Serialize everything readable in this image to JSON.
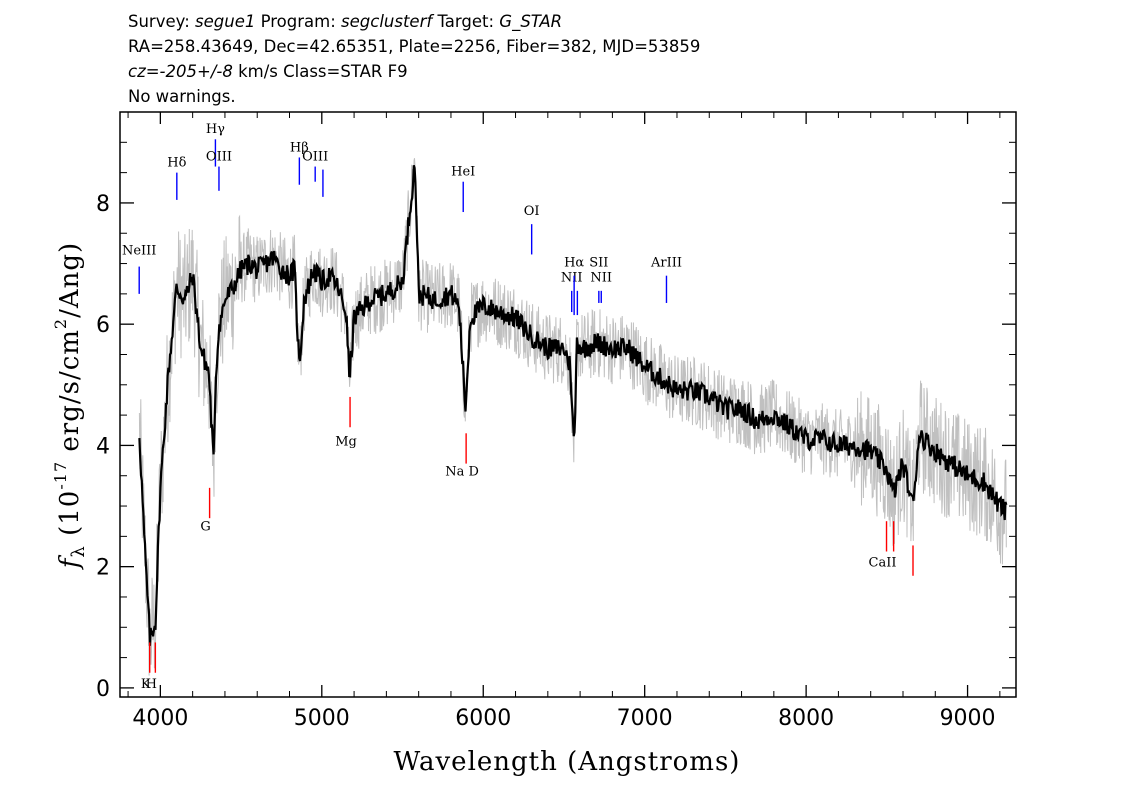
{
  "header": {
    "survey_key": "Survey:",
    "survey": "segue1",
    "program_key": "Program:",
    "program": "segclusterf",
    "target_key": "Target:",
    "target": "G_STAR",
    "line2": "RA=258.43649, Dec=42.65351, Plate=2256, Fiber=382, MJD=53859",
    "cz": "cz=-205+/-8",
    "cz_units": "km/s Class=STAR F9",
    "warnings": "No warnings."
  },
  "chart_data": {
    "type": "line",
    "xlabel": "Wavelength (Angstroms)",
    "ylabel": "f_λ (10^-17 erg/s/cm^2/Ang)",
    "xlim": [
      3750,
      9300
    ],
    "ylim": [
      -0.15,
      9.5
    ],
    "xticks": [
      4000,
      5000,
      6000,
      7000,
      8000,
      9000
    ],
    "xtick_labels": [
      "4000",
      "5000",
      "6000",
      "7000",
      "8000",
      "9000"
    ],
    "yticks": [
      0,
      2,
      4,
      6,
      8
    ],
    "ytick_labels": [
      "0",
      "2",
      "4",
      "6",
      "8"
    ],
    "grid": false,
    "series": [
      {
        "role": "smoothed-spectrum",
        "color": "#000000",
        "x": [
          3870,
          3900,
          3935,
          3970,
          4000,
          4050,
          4100,
          4150,
          4200,
          4250,
          4300,
          4330,
          4340,
          4360,
          4400,
          4450,
          4500,
          4550,
          4600,
          4650,
          4700,
          4750,
          4800,
          4830,
          4861,
          4890,
          4950,
          5000,
          5050,
          5100,
          5150,
          5172,
          5200,
          5300,
          5400,
          5500,
          5577,
          5600,
          5700,
          5800,
          5850,
          5890,
          5920,
          6000,
          6100,
          6200,
          6300,
          6400,
          6500,
          6540,
          6563,
          6580,
          6620,
          6700,
          6800,
          6900,
          7000,
          7100,
          7200,
          7300,
          7400,
          7500,
          7600,
          7700,
          7800,
          7900,
          8000,
          8100,
          8200,
          8300,
          8400,
          8500,
          8540,
          8600,
          8662,
          8700,
          8800,
          8900,
          9000,
          9100,
          9200,
          9240
        ],
        "y": [
          4.2,
          2.5,
          0.8,
          1.1,
          3.3,
          5.2,
          6.6,
          6.4,
          6.8,
          5.6,
          5.2,
          3.7,
          4.9,
          5.9,
          6.4,
          6.6,
          6.9,
          7.0,
          6.9,
          7.0,
          7.1,
          6.9,
          6.8,
          6.9,
          5.3,
          6.4,
          6.9,
          6.7,
          6.8,
          6.6,
          6.2,
          5.1,
          6.1,
          6.4,
          6.5,
          6.7,
          8.7,
          6.5,
          6.4,
          6.5,
          6.3,
          4.6,
          6.1,
          6.3,
          6.2,
          6.1,
          5.8,
          5.6,
          5.6,
          5.3,
          3.9,
          5.7,
          5.6,
          5.7,
          5.6,
          5.6,
          5.3,
          5.1,
          4.9,
          4.9,
          4.8,
          4.6,
          4.6,
          4.4,
          4.5,
          4.3,
          4.1,
          4.1,
          4.0,
          4.0,
          3.9,
          3.6,
          3.2,
          3.7,
          3.0,
          4.2,
          3.9,
          3.7,
          3.5,
          3.4,
          3.0,
          2.9
        ]
      },
      {
        "role": "raw-flux",
        "color": "#c0c0c0",
        "spread": 0.6,
        "x_range": [
          3870,
          9240
        ]
      }
    ],
    "emission_lines": [
      {
        "label": "NeIII",
        "wavelength": 3869,
        "label_y": 7.15,
        "y_top": 6.95,
        "y_bottom": 6.5
      },
      {
        "label": "Hδ",
        "wavelength": 4102,
        "label_y": 8.6,
        "y_top": 8.5,
        "y_bottom": 8.05
      },
      {
        "label": "Hγ",
        "wavelength": 4341,
        "label_y": 9.15,
        "y_top": 9.05,
        "y_bottom": 8.6
      },
      {
        "label": "OIII",
        "wavelength": 4363,
        "label_y": 8.7,
        "y_top": 8.6,
        "y_bottom": 8.2
      },
      {
        "label": "Hβ",
        "wavelength": 4861,
        "label_y": 8.85,
        "y_top": 8.75,
        "y_bottom": 8.3
      },
      {
        "label": "OIII",
        "wavelength": 4959,
        "label_y": 8.7,
        "y_top": 8.6,
        "y_bottom": 8.35
      },
      {
        "label": "",
        "wavelength": 5007,
        "label_y": 0,
        "y_top": 8.55,
        "y_bottom": 8.1
      },
      {
        "label": "HeI",
        "wavelength": 5876,
        "label_y": 8.45,
        "y_top": 8.35,
        "y_bottom": 7.85
      },
      {
        "label": "OI",
        "wavelength": 6300,
        "label_y": 7.8,
        "y_top": 7.65,
        "y_bottom": 7.15
      },
      {
        "label": "NII",
        "wavelength": 6548,
        "label_y": 6.7,
        "y_top": 6.55,
        "y_bottom": 6.2
      },
      {
        "label": "Hα",
        "wavelength": 6563,
        "label_y": 6.95,
        "y_top": 6.8,
        "y_bottom": 6.15
      },
      {
        "label": "",
        "wavelength": 6583,
        "label_y": 0,
        "y_top": 6.55,
        "y_bottom": 6.15
      },
      {
        "label": "SII",
        "wavelength": 6716,
        "label_y": 6.95,
        "y_top": 6.55,
        "y_bottom": 6.35
      },
      {
        "label": "NII",
        "wavelength": 6731,
        "label_y": 6.7,
        "y_top": 6.55,
        "y_bottom": 6.35
      },
      {
        "label": "ArIII",
        "wavelength": 7135,
        "label_y": 6.95,
        "y_top": 6.8,
        "y_bottom": 6.35
      }
    ],
    "absorption_lines": [
      {
        "label": "K",
        "wavelength": 3934,
        "label_y": 0.0,
        "y_top": 0.75,
        "y_bottom": 0.25
      },
      {
        "label": "H",
        "wavelength": 3969,
        "label_y": 0.0,
        "y_top": 0.75,
        "y_bottom": 0.25
      },
      {
        "label": "G",
        "wavelength": 4305,
        "label_y": 2.6,
        "y_top": 3.3,
        "y_bottom": 2.8
      },
      {
        "label": "Mg",
        "wavelength": 5175,
        "label_y": 4.0,
        "y_top": 4.8,
        "y_bottom": 4.3
      },
      {
        "label": "Na D",
        "wavelength": 5894,
        "label_y": 3.5,
        "y_top": 4.2,
        "y_bottom": 3.7
      },
      {
        "label": "CaII",
        "wavelength": 8498,
        "label_y": 2.0,
        "y_top": 2.75,
        "y_bottom": 2.25
      },
      {
        "label": "",
        "wavelength": 8542,
        "label_y": 0,
        "y_top": 2.75,
        "y_bottom": 2.25
      },
      {
        "label": "",
        "wavelength": 8662,
        "label_y": 0,
        "y_top": 2.35,
        "y_bottom": 1.85
      }
    ],
    "colors": {
      "emission": "#0000ff",
      "absorption": "#ff0000",
      "raw": "#c0c0c0",
      "smooth": "#000000"
    }
  }
}
